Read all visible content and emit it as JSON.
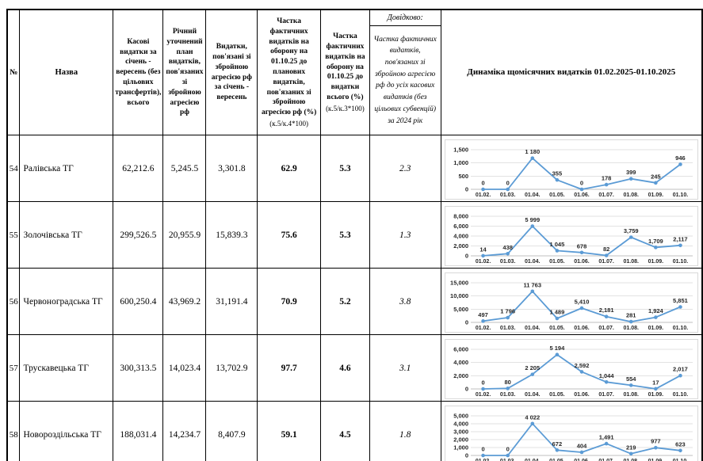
{
  "table": {
    "headers": {
      "num": "№",
      "name": "Назва",
      "cash": "Касові видатки за січень - вересень (без цільових трансфертів), всього",
      "plan": "Річний уточнений план видатків, пов'язаних зі збройною агресією рф",
      "spent": "Видатки, пов'язані зі збройною агресією рф за січень - вересень",
      "share_plan": "Частка фактичних видатків на оборону на 01.10.25 до планових видатків, пов'язаних зі збройною агресією рф (%)",
      "share_plan_formula": "(к.5/к.4*100)",
      "share_total": "Частка фактичних видатків на оборону на 01.10.25 до видатки всього (%)",
      "share_total_formula": "(к.5/к.3*100)",
      "ref_title": "Довідково:",
      "ref_body": "Частка фактичних видатків, пов'язаних зі збройною агресією рф до усіх касових видатків (без цільових субвенцій) за 2024 рік",
      "dynamics": "Динаміка щомісячних видатків 01.02.2025-01.10.2025"
    },
    "rows": [
      {
        "num": "54",
        "name": "Ралівська ТГ",
        "cash": "62,212.6",
        "plan": "5,245.5",
        "spent": "3,301.8",
        "share_plan": "62.9",
        "share_total": "5.3",
        "ref": "2.3"
      },
      {
        "num": "55",
        "name": "Золочівська ТГ",
        "cash": "299,526.5",
        "plan": "20,955.9",
        "spent": "15,839.3",
        "share_plan": "75.6",
        "share_total": "5.3",
        "ref": "1.3"
      },
      {
        "num": "56",
        "name": "Червоноградська ТГ",
        "cash": "600,250.4",
        "plan": "43,969.2",
        "spent": "31,191.4",
        "share_plan": "70.9",
        "share_total": "5.2",
        "ref": "3.8"
      },
      {
        "num": "57",
        "name": "Трускавецька ТГ",
        "cash": "300,313.5",
        "plan": "14,023.4",
        "spent": "13,702.9",
        "share_plan": "97.7",
        "share_total": "4.6",
        "ref": "3.1"
      },
      {
        "num": "58",
        "name": "Новороздільська ТГ",
        "cash": "188,031.4",
        "plan": "14,234.7",
        "spent": "8,407.9",
        "share_plan": "59.1",
        "share_total": "4.5",
        "ref": "1.8"
      }
    ]
  },
  "chart_style": {
    "line_color": "#5b9bd5",
    "grid_color": "#d9d9d9",
    "axis_color": "#bfbfbf",
    "label_color": "#262626",
    "border_color": "#d9d9d9"
  },
  "chart_data": [
    {
      "type": "line",
      "row_num": "54",
      "legend": false,
      "grid": true,
      "x": [
        "01.02.",
        "01.03.",
        "01.04.",
        "01.05.",
        "01.06.",
        "01.07.",
        "01.08.",
        "01.09.",
        "01.10."
      ],
      "values": [
        0,
        0,
        1180,
        355,
        0,
        178,
        399,
        245,
        946
      ],
      "point_labels": [
        "0",
        "0",
        "1 180",
        "355",
        "0",
        "178",
        "399",
        "245",
        "946"
      ],
      "ylim": [
        0,
        1500
      ],
      "yticks": [
        {
          "v": 0,
          "t": "0"
        },
        {
          "v": 500,
          "t": "500"
        },
        {
          "v": 1000,
          "t": "1,000"
        },
        {
          "v": 1500,
          "t": "1,500"
        }
      ]
    },
    {
      "type": "line",
      "row_num": "55",
      "legend": false,
      "grid": true,
      "x": [
        "01.02.",
        "01.03.",
        "01.04.",
        "01.05.",
        "01.06.",
        "01.07.",
        "01.08.",
        "01.09.",
        "01.10."
      ],
      "values": [
        14,
        438,
        5999,
        1045,
        678,
        82,
        3759,
        1709,
        2117
      ],
      "point_labels": [
        "14",
        "438",
        "5 999",
        "1 045",
        "678",
        "82",
        "3,759",
        "1,709",
        "2,117"
      ],
      "ylim": [
        0,
        8000
      ],
      "yticks": [
        {
          "v": 0,
          "t": "0"
        },
        {
          "v": 2000,
          "t": "2,000"
        },
        {
          "v": 4000,
          "t": "4,000"
        },
        {
          "v": 6000,
          "t": "6,000"
        },
        {
          "v": 8000,
          "t": "8,000"
        }
      ]
    },
    {
      "type": "line",
      "row_num": "56",
      "legend": false,
      "grid": true,
      "x": [
        "01.02.",
        "01.03.",
        "01.04.",
        "01.05.",
        "01.06.",
        "01.07.",
        "01.08.",
        "01.09.",
        "01.10."
      ],
      "values": [
        497,
        1796,
        11763,
        1489,
        5410,
        2181,
        281,
        1924,
        5851
      ],
      "point_labels": [
        "497",
        "1 796",
        "11 763",
        "1 489",
        "5,410",
        "2,181",
        "281",
        "1,924",
        "5,851"
      ],
      "ylim": [
        0,
        15000
      ],
      "yticks": [
        {
          "v": 0,
          "t": "0"
        },
        {
          "v": 5000,
          "t": "5,000"
        },
        {
          "v": 10000,
          "t": "10,000"
        },
        {
          "v": 15000,
          "t": "15,000"
        }
      ]
    },
    {
      "type": "line",
      "row_num": "57",
      "legend": false,
      "grid": true,
      "x": [
        "01.02.",
        "01.03.",
        "01.04.",
        "01.05.",
        "01.06.",
        "01.07.",
        "01.08.",
        "01.09.",
        "01.10."
      ],
      "values": [
        0,
        80,
        2205,
        5194,
        2592,
        1044,
        554,
        17,
        2017
      ],
      "point_labels": [
        "0",
        "80",
        "2 205",
        "5 194",
        "2,592",
        "1,044",
        "554",
        "17",
        "2,017"
      ],
      "ylim": [
        0,
        6000
      ],
      "yticks": [
        {
          "v": 0,
          "t": "0"
        },
        {
          "v": 2000,
          "t": "2,000"
        },
        {
          "v": 4000,
          "t": "4,000"
        },
        {
          "v": 6000,
          "t": "6,000"
        }
      ]
    },
    {
      "type": "line",
      "row_num": "58",
      "legend": false,
      "grid": true,
      "x": [
        "01.02.",
        "01.03.",
        "01.04.",
        "01.05.",
        "01.06.",
        "01.07.",
        "01.08.",
        "01.09.",
        "01.10."
      ],
      "values": [
        0,
        0,
        4022,
        672,
        404,
        1491,
        219,
        977,
        623
      ],
      "point_labels": [
        "0",
        "0",
        "4 022",
        "672",
        "404",
        "1,491",
        "219",
        "977",
        "623"
      ],
      "ylim": [
        0,
        5000
      ],
      "yticks": [
        {
          "v": 0,
          "t": "0"
        },
        {
          "v": 1000,
          "t": "1,000"
        },
        {
          "v": 2000,
          "t": "2,000"
        },
        {
          "v": 3000,
          "t": "3,000"
        },
        {
          "v": 4000,
          "t": "4,000"
        },
        {
          "v": 5000,
          "t": "5,000"
        }
      ]
    }
  ]
}
